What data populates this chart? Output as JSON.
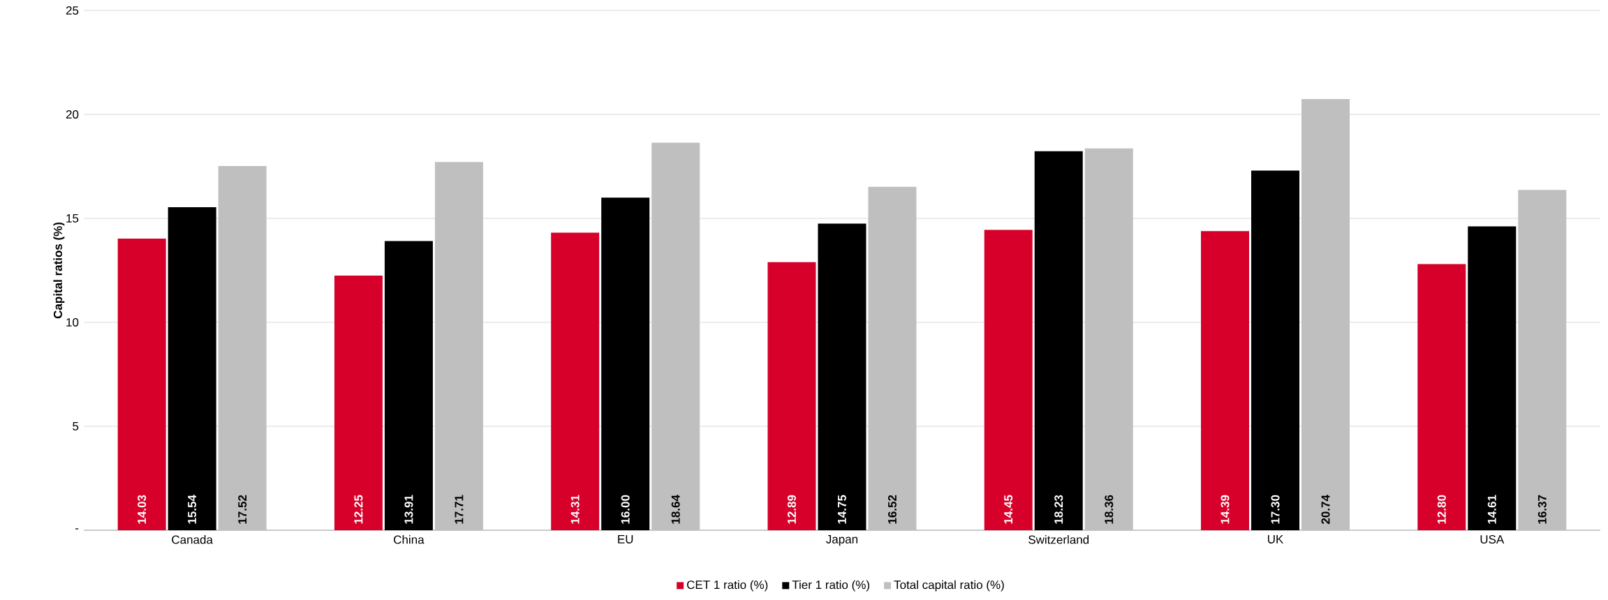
{
  "chart_data": {
    "type": "bar",
    "ylabel": "Capital ratios (%)",
    "categories": [
      "Canada",
      "China",
      "EU",
      "Japan",
      "Switzerland",
      "UK",
      "USA"
    ],
    "series": [
      {
        "name": "CET 1 ratio (%)",
        "color": "#d6002a",
        "values": [
          14.03,
          12.25,
          14.31,
          12.89,
          14.45,
          14.39,
          12.8
        ],
        "value_labels": [
          "14.03",
          "12.25",
          "14.31",
          "12.89",
          "14.45",
          "14.39",
          "12.80"
        ]
      },
      {
        "name": "Tier 1 ratio (%)",
        "color": "#000000",
        "values": [
          15.54,
          13.91,
          16.0,
          14.75,
          18.23,
          17.3,
          14.61
        ],
        "value_labels": [
          "15.54",
          "13.91",
          "16.00",
          "14.75",
          "18.23",
          "17.30",
          "14.61"
        ]
      },
      {
        "name": "Total capital ratio (%)",
        "color": "#bfbfbf",
        "values": [
          17.52,
          17.71,
          18.64,
          16.52,
          18.36,
          20.74,
          16.37
        ],
        "value_labels": [
          "17.52",
          "17.71",
          "18.64",
          "16.52",
          "18.36",
          "20.74",
          "16.37"
        ]
      }
    ],
    "ylim": [
      0,
      25
    ],
    "yticks": [
      {
        "value": 0,
        "label": "-"
      },
      5,
      10,
      15,
      20,
      25
    ],
    "grid": "y",
    "legend": "bottom"
  }
}
